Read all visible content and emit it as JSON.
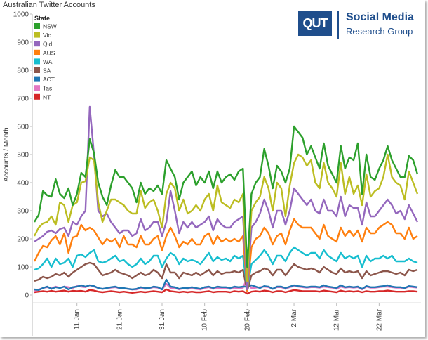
{
  "title": "Australian Twitter Accounts",
  "logo": {
    "mark": "QUT",
    "line1": "Social Media",
    "line2": "Research Group",
    "color": "#1f4e8c"
  },
  "chart_data": {
    "type": "line",
    "title": "Australian Twitter Accounts",
    "xlabel": "",
    "ylabel": "Accounts / Month",
    "ylim": [
      0,
      1000
    ],
    "yticks": [
      0,
      100,
      200,
      300,
      400,
      500,
      600,
      700,
      800,
      900,
      1000
    ],
    "legend_title": "State",
    "legend_position": "top-left",
    "grid": false,
    "x_labels": [
      {
        "day": 11,
        "label": "11 Jan"
      },
      {
        "day": 21,
        "label": "21 Jan"
      },
      {
        "day": 31,
        "label": "31 Jan"
      },
      {
        "day": 41,
        "label": "10 Feb"
      },
      {
        "day": 51,
        "label": "20 Feb"
      },
      {
        "day": 62,
        "label": "2 Mar"
      },
      {
        "day": 72,
        "label": "12 Mar"
      },
      {
        "day": 82,
        "label": "22 Mar"
      }
    ],
    "x": [
      1,
      2,
      3,
      4,
      5,
      6,
      7,
      8,
      9,
      10,
      11,
      12,
      13,
      14,
      15,
      16,
      17,
      18,
      19,
      20,
      21,
      22,
      23,
      24,
      25,
      26,
      27,
      28,
      29,
      30,
      31,
      32,
      33,
      34,
      35,
      36,
      37,
      38,
      39,
      40,
      41,
      42,
      43,
      44,
      45,
      46,
      47,
      48,
      49,
      50,
      51,
      52,
      53,
      54,
      55,
      56,
      57,
      58,
      59,
      60,
      61,
      62,
      63,
      64,
      65,
      66,
      67,
      68,
      69,
      70,
      71,
      72,
      73,
      74,
      75,
      76,
      77,
      78,
      79,
      80,
      81,
      82,
      83,
      84,
      85,
      86,
      87,
      88,
      89,
      90,
      91
    ],
    "series": [
      {
        "name": "NSW",
        "color": "#2ca02c",
        "values": [
          260,
          285,
          370,
          355,
          350,
          412,
          360,
          345,
          380,
          320,
          360,
          435,
          420,
          555,
          505,
          400,
          350,
          320,
          390,
          445,
          420,
          420,
          400,
          380,
          330,
          400,
          360,
          380,
          370,
          390,
          360,
          480,
          450,
          420,
          340,
          400,
          420,
          440,
          390,
          420,
          400,
          440,
          380,
          440,
          400,
          420,
          430,
          410,
          440,
          450,
          100,
          360,
          400,
          420,
          520,
          460,
          380,
          460,
          440,
          400,
          450,
          600,
          580,
          560,
          500,
          530,
          490,
          450,
          540,
          460,
          430,
          400,
          530,
          450,
          490,
          480,
          540,
          360,
          500,
          420,
          410,
          450,
          480,
          530,
          480,
          450,
          420,
          420,
          495,
          480,
          430
        ]
      },
      {
        "name": "Vic",
        "color": "#bcbd22",
        "values": [
          210,
          240,
          255,
          260,
          280,
          250,
          330,
          320,
          260,
          320,
          330,
          400,
          405,
          490,
          480,
          330,
          260,
          300,
          340,
          340,
          330,
          320,
          300,
          290,
          290,
          370,
          310,
          330,
          340,
          300,
          240,
          360,
          400,
          380,
          300,
          340,
          290,
          300,
          320,
          300,
          340,
          360,
          300,
          390,
          330,
          320,
          310,
          340,
          330,
          360,
          50,
          300,
          330,
          350,
          420,
          380,
          300,
          400,
          380,
          280,
          390,
          470,
          500,
          490,
          460,
          480,
          400,
          380,
          470,
          400,
          380,
          350,
          470,
          360,
          420,
          360,
          390,
          320,
          430,
          350,
          370,
          380,
          420,
          500,
          420,
          400,
          390,
          340,
          440,
          400,
          360
        ]
      },
      {
        "name": "Qld",
        "color": "#9467bd",
        "values": [
          190,
          200,
          210,
          225,
          230,
          220,
          235,
          240,
          210,
          260,
          250,
          280,
          300,
          670,
          500,
          300,
          280,
          290,
          260,
          240,
          220,
          230,
          230,
          210,
          220,
          270,
          230,
          240,
          260,
          260,
          210,
          260,
          370,
          300,
          220,
          260,
          240,
          260,
          240,
          250,
          260,
          280,
          230,
          270,
          250,
          240,
          240,
          260,
          270,
          280,
          20,
          240,
          260,
          290,
          340,
          300,
          240,
          300,
          300,
          250,
          300,
          380,
          360,
          340,
          320,
          340,
          300,
          290,
          340,
          300,
          300,
          280,
          350,
          280,
          320,
          310,
          310,
          250,
          330,
          280,
          280,
          300,
          320,
          340,
          320,
          290,
          300,
          270,
          320,
          290,
          260
        ]
      },
      {
        "name": "AUS",
        "color": "#ff7f0e",
        "values": [
          120,
          150,
          175,
          170,
          195,
          210,
          180,
          220,
          150,
          205,
          210,
          250,
          230,
          240,
          230,
          205,
          180,
          200,
          190,
          200,
          170,
          210,
          180,
          180,
          170,
          210,
          180,
          180,
          200,
          210,
          160,
          210,
          240,
          210,
          170,
          190,
          180,
          200,
          180,
          180,
          210,
          220,
          180,
          210,
          190,
          200,
          190,
          200,
          190,
          210,
          15,
          170,
          200,
          210,
          240,
          220,
          180,
          210,
          220,
          180,
          230,
          270,
          250,
          240,
          240,
          240,
          220,
          200,
          250,
          210,
          200,
          190,
          240,
          210,
          230,
          210,
          230,
          190,
          240,
          220,
          220,
          240,
          250,
          260,
          250,
          220,
          220,
          200,
          240,
          200,
          210
        ]
      },
      {
        "name": "WA",
        "color": "#17becf",
        "values": [
          90,
          95,
          110,
          130,
          100,
          130,
          110,
          115,
          130,
          100,
          140,
          145,
          135,
          150,
          160,
          120,
          115,
          120,
          130,
          140,
          120,
          125,
          110,
          100,
          110,
          130,
          110,
          120,
          140,
          140,
          100,
          130,
          150,
          140,
          110,
          130,
          120,
          125,
          120,
          110,
          130,
          150,
          120,
          135,
          125,
          130,
          120,
          140,
          130,
          140,
          20,
          110,
          125,
          140,
          160,
          140,
          110,
          140,
          140,
          120,
          150,
          170,
          160,
          150,
          140,
          150,
          150,
          130,
          160,
          140,
          130,
          120,
          150,
          130,
          140,
          130,
          140,
          100,
          140,
          120,
          130,
          130,
          140,
          130,
          140,
          120,
          120,
          120,
          130,
          120,
          115
        ]
      },
      {
        "name": "SA",
        "color": "#8c564b",
        "values": [
          50,
          55,
          65,
          60,
          65,
          75,
          70,
          80,
          65,
          80,
          90,
          100,
          110,
          115,
          110,
          90,
          70,
          75,
          80,
          90,
          80,
          75,
          70,
          60,
          70,
          80,
          70,
          75,
          90,
          80,
          60,
          110,
          80,
          80,
          60,
          80,
          75,
          70,
          80,
          70,
          80,
          90,
          70,
          85,
          75,
          80,
          80,
          85,
          80,
          90,
          15,
          70,
          80,
          85,
          95,
          90,
          70,
          90,
          90,
          70,
          90,
          110,
          100,
          95,
          90,
          95,
          90,
          80,
          100,
          90,
          80,
          75,
          95,
          80,
          85,
          80,
          85,
          60,
          85,
          70,
          75,
          80,
          85,
          85,
          80,
          75,
          80,
          70,
          90,
          85,
          90
        ]
      },
      {
        "name": "ACT",
        "color": "#1f77b4",
        "values": [
          20,
          18,
          25,
          30,
          22,
          28,
          25,
          30,
          20,
          28,
          30,
          35,
          30,
          35,
          32,
          25,
          22,
          25,
          28,
          30,
          25,
          25,
          22,
          20,
          22,
          28,
          25,
          25,
          30,
          28,
          20,
          55,
          30,
          28,
          22,
          25,
          25,
          28,
          25,
          22,
          28,
          30,
          25,
          30,
          28,
          28,
          25,
          30,
          28,
          30,
          30,
          35,
          30,
          25,
          32,
          30,
          22,
          30,
          30,
          25,
          30,
          35,
          32,
          30,
          28,
          30,
          30,
          28,
          35,
          30,
          28,
          25,
          35,
          28,
          30,
          28,
          30,
          22,
          32,
          28,
          28,
          30,
          32,
          35,
          30,
          28,
          28,
          25,
          32,
          30,
          28
        ]
      },
      {
        "name": "Tas",
        "color": "#e377c2",
        "values": [
          15,
          20,
          25,
          28,
          24,
          30,
          26,
          30,
          28,
          25,
          32,
          30,
          28,
          35,
          30,
          25,
          22,
          24,
          26,
          28,
          24,
          24,
          22,
          20,
          20,
          25,
          22,
          24,
          28,
          26,
          20,
          40,
          25,
          25,
          20,
          24,
          22,
          24,
          22,
          20,
          25,
          28,
          22,
          26,
          24,
          25,
          22,
          26,
          24,
          26,
          60,
          24,
          26,
          28,
          30,
          28,
          22,
          28,
          28,
          22,
          28,
          32,
          30,
          28,
          26,
          28,
          28,
          26,
          30,
          28,
          26,
          22,
          30,
          26,
          28,
          26,
          28,
          20,
          30,
          26,
          26,
          28,
          30,
          30,
          28,
          26,
          26,
          24,
          30,
          28,
          26
        ]
      },
      {
        "name": "NT",
        "color": "#d62728",
        "values": [
          10,
          12,
          14,
          12,
          15,
          12,
          14,
          16,
          12,
          15,
          14,
          15,
          12,
          18,
          16,
          12,
          10,
          12,
          14,
          12,
          10,
          12,
          10,
          8,
          10,
          12,
          10,
          12,
          14,
          12,
          10,
          20,
          14,
          12,
          10,
          12,
          10,
          12,
          10,
          10,
          12,
          14,
          10,
          12,
          12,
          12,
          10,
          14,
          12,
          14,
          5,
          12,
          14,
          12,
          16,
          14,
          10,
          14,
          14,
          10,
          14,
          18,
          16,
          14,
          14,
          14,
          14,
          12,
          16,
          14,
          12,
          10,
          16,
          12,
          14,
          12,
          14,
          10,
          14,
          12,
          12,
          14,
          14,
          16,
          14,
          12,
          12,
          12,
          14,
          14,
          12
        ]
      }
    ]
  }
}
